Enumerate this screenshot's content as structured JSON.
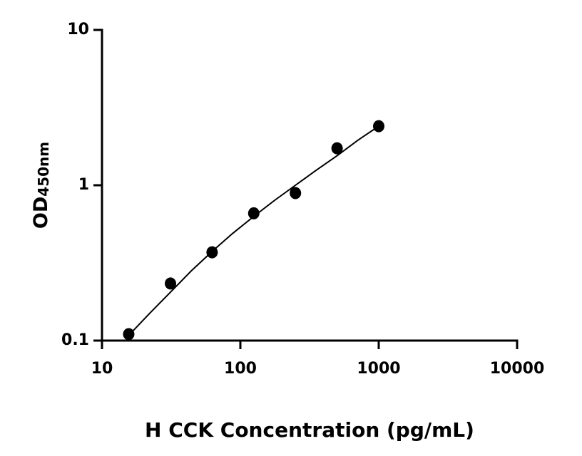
{
  "chart_data": {
    "type": "scatter",
    "x_label": "H CCK Concentration (pg/mL)",
    "y_label": "OD",
    "y_label_sub": "450nm",
    "xscale": "log",
    "yscale": "log",
    "xlim": [
      10,
      10000
    ],
    "ylim": [
      0.1,
      10
    ],
    "xticks": [
      10,
      100,
      1000,
      10000
    ],
    "yticks": [
      0.1,
      1,
      10
    ],
    "color": "#000000",
    "points": {
      "x": [
        15.6,
        31.25,
        62.5,
        125,
        250,
        500,
        1000
      ],
      "y": [
        0.11,
        0.233,
        0.37,
        0.66,
        0.89,
        1.73,
        2.4
      ]
    },
    "fit": {
      "x": [
        15.6,
        22,
        31.25,
        44,
        62.5,
        88,
        125,
        177,
        250,
        354,
        500,
        707,
        1000
      ],
      "y": [
        0.108,
        0.149,
        0.205,
        0.28,
        0.375,
        0.49,
        0.63,
        0.8,
        1.0,
        1.25,
        1.55,
        1.95,
        2.4
      ]
    }
  }
}
